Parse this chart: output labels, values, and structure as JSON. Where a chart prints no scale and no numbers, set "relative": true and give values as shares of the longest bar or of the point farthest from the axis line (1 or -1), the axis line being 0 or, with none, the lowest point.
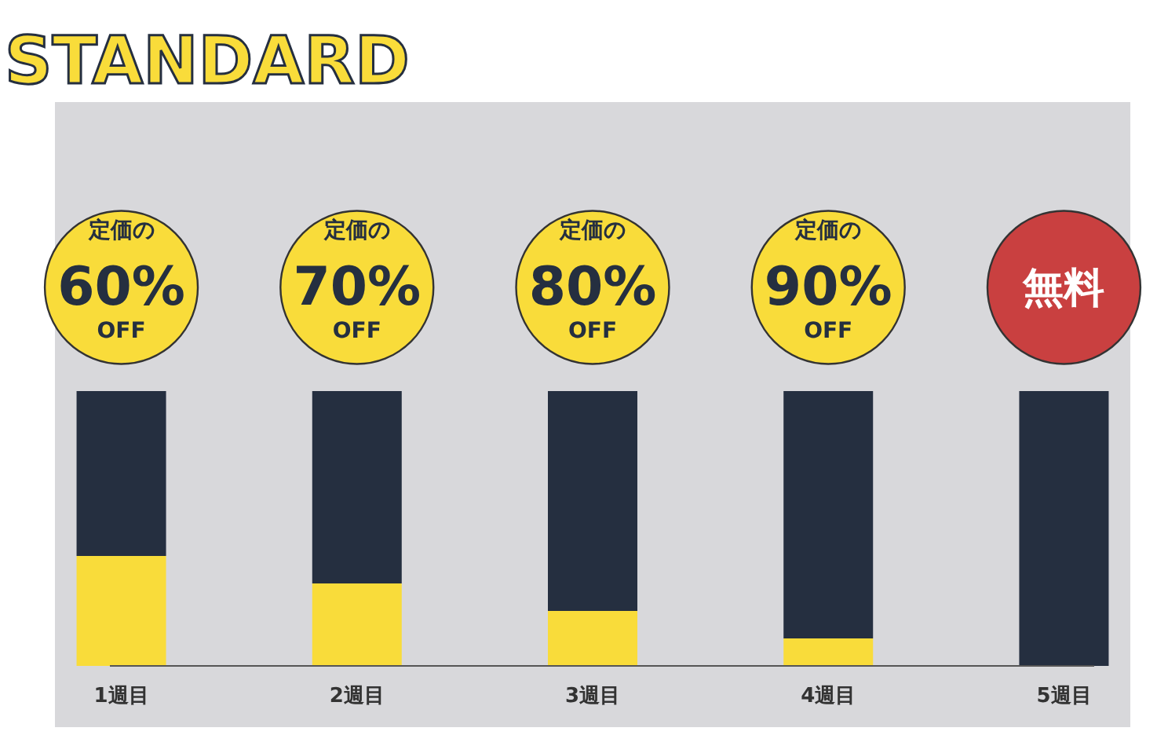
{
  "chart_data": {
    "type": "bar",
    "title": "STANDARD",
    "relative": true,
    "stacked": true,
    "categories": [
      "1週目",
      "2週目",
      "3週目",
      "4週目",
      "5週目"
    ],
    "series": [
      {
        "color": "#f9dc3a",
        "values": [
          0.4,
          0.3,
          0.2,
          0.1,
          0
        ]
      },
      {
        "color": "#252f40",
        "values": [
          0.6,
          0.7,
          0.8,
          0.9,
          1.0
        ]
      }
    ],
    "annotations": [
      "定価の\n60%\nOFF",
      "定価の\n70%\nOFF",
      "定価の\n80%\nOFF",
      "定価の\n90%\nOFF",
      "無料"
    ]
  }
}
